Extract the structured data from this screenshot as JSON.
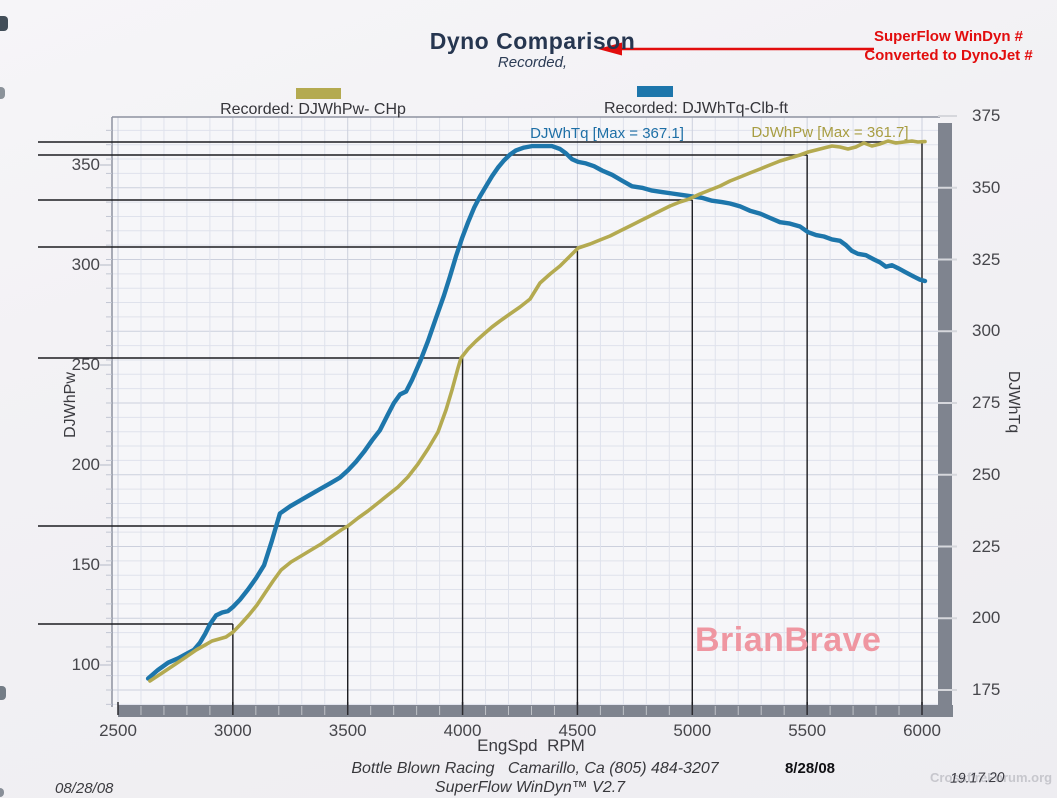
{
  "header": {
    "title": "Dyno Comparison",
    "subtitle": "Recorded,",
    "note_line1": "SuperFlow WinDyn #",
    "note_line2": "Converted to DynoJet #"
  },
  "legend": {
    "power_label": "Recorded: DJWhPw- CHp",
    "torque_label": "Recorded: DJWhTq-Clb-ft"
  },
  "annotations": {
    "torque_max_label": "DJWhTq [Max = 367.1]",
    "power_max_label": "DJWhPw [Max = 361.7]",
    "watermark": "BrianBrave",
    "corner_watermark": "CrossfireForum.org",
    "corner_time": "19.17.20"
  },
  "footer": {
    "shop_line": "Bottle Blown Racing   Camarillo, Ca (805) 484-3207",
    "software_line": "SuperFlow WinDyn™ V2.7",
    "date_bold": "8/28/08",
    "date_left": "08/28/08"
  },
  "colors": {
    "power_curve": "#b4aa50",
    "torque_curve": "#1d76ab",
    "crosshair": "#1c1c20",
    "red_accent": "#e20d0d",
    "grid_minor": "#dfe2ec",
    "grid_major": "#ccd0dd",
    "plot_bg": "#f6f6f9",
    "shadow": "#7f848f",
    "watermark_pink": "#ef96a1"
  },
  "chart_data": {
    "type": "line",
    "title": "Dyno Comparison",
    "x_axis": {
      "label": "EngSpd  RPM",
      "min": 2500,
      "max": 6078,
      "major_step": 500,
      "minor_step": 100,
      "ticks": [
        2500,
        3000,
        3500,
        4000,
        4500,
        5000,
        5500,
        6000
      ]
    },
    "y_left": {
      "label": "DJWhPw",
      "min": 75,
      "max": 375,
      "ticks": [
        100,
        150,
        200,
        250,
        300,
        350
      ]
    },
    "y_right": {
      "label": "DJWhTq",
      "min": 170,
      "max": 375,
      "grid_step": 5,
      "ticks": [
        175,
        200,
        225,
        250,
        275,
        300,
        325,
        350,
        375
      ]
    },
    "legend_position": "top",
    "grid": true,
    "series": [
      {
        "name": "DJWhTq-Clb-ft",
        "axis": "right",
        "color": "#1d76ab",
        "max": 367.1,
        "points": [
          [
            2631,
            179
          ],
          [
            2674,
            182
          ],
          [
            2718,
            184.5
          ],
          [
            2761,
            186
          ],
          [
            2796,
            187.5
          ],
          [
            2831,
            189
          ],
          [
            2857,
            191.5
          ],
          [
            2879,
            194.5
          ],
          [
            2901,
            198
          ],
          [
            2927,
            201
          ],
          [
            2953,
            202
          ],
          [
            2979,
            202.5
          ],
          [
            3001,
            204
          ],
          [
            3031,
            206.5
          ],
          [
            3066,
            210
          ],
          [
            3101,
            214
          ],
          [
            3136,
            218.5
          ],
          [
            3170,
            227
          ],
          [
            3205,
            236.5
          ],
          [
            3249,
            239
          ],
          [
            3292,
            241
          ],
          [
            3336,
            243
          ],
          [
            3379,
            245
          ],
          [
            3423,
            247
          ],
          [
            3466,
            249
          ],
          [
            3501,
            251.5
          ],
          [
            3536,
            254.5
          ],
          [
            3571,
            258
          ],
          [
            3606,
            262
          ],
          [
            3640,
            265.5
          ],
          [
            3675,
            271
          ],
          [
            3701,
            275
          ],
          [
            3728,
            278
          ],
          [
            3754,
            279
          ],
          [
            3780,
            283
          ],
          [
            3815,
            289.5
          ],
          [
            3849,
            296.5
          ],
          [
            3884,
            304.5
          ],
          [
            3919,
            312.5
          ],
          [
            3945,
            319
          ],
          [
            3971,
            326
          ],
          [
            3998,
            332.5
          ],
          [
            4024,
            338
          ],
          [
            4050,
            343
          ],
          [
            4076,
            347
          ],
          [
            4102,
            350.5
          ],
          [
            4128,
            354
          ],
          [
            4154,
            357
          ],
          [
            4180,
            359.5
          ],
          [
            4206,
            361.5
          ],
          [
            4232,
            363
          ],
          [
            4267,
            364
          ],
          [
            4302,
            364.5
          ],
          [
            4345,
            364.5
          ],
          [
            4389,
            364.5
          ],
          [
            4424,
            363.5
          ],
          [
            4450,
            362
          ],
          [
            4476,
            360
          ],
          [
            4503,
            359
          ],
          [
            4537,
            358.5
          ],
          [
            4572,
            357.5
          ],
          [
            4607,
            356
          ],
          [
            4651,
            354.5
          ],
          [
            4694,
            352.5
          ],
          [
            4738,
            350.5
          ],
          [
            4781,
            350
          ],
          [
            4825,
            349
          ],
          [
            4868,
            348.5
          ],
          [
            4912,
            348
          ],
          [
            4955,
            347.5
          ],
          [
            4999,
            347
          ],
          [
            5042,
            346.5
          ],
          [
            5086,
            345.5
          ],
          [
            5129,
            345
          ],
          [
            5164,
            344.5
          ],
          [
            5208,
            343.5
          ],
          [
            5251,
            342
          ],
          [
            5295,
            341
          ],
          [
            5338,
            339.5
          ],
          [
            5382,
            338
          ],
          [
            5425,
            337.5
          ],
          [
            5469,
            336.5
          ],
          [
            5504,
            334.5
          ],
          [
            5539,
            333.5
          ],
          [
            5573,
            333
          ],
          [
            5608,
            332
          ],
          [
            5643,
            331.5
          ],
          [
            5669,
            330
          ],
          [
            5695,
            328
          ],
          [
            5721,
            327
          ],
          [
            5756,
            326.5
          ],
          [
            5791,
            325
          ],
          [
            5817,
            324
          ],
          [
            5843,
            322.5
          ],
          [
            5869,
            323
          ],
          [
            5895,
            322
          ],
          [
            5930,
            320.5
          ],
          [
            5965,
            319
          ],
          [
            5991,
            318
          ],
          [
            6013,
            317.5
          ]
        ]
      },
      {
        "name": "DJWhPw- CHp",
        "axis": "left",
        "color": "#b4aa50",
        "max": 361.7,
        "points": [
          [
            2639,
            92
          ],
          [
            2692,
            96
          ],
          [
            2744,
            100
          ],
          [
            2796,
            104
          ],
          [
            2840,
            107.5
          ],
          [
            2879,
            110
          ],
          [
            2909,
            112
          ],
          [
            2940,
            113
          ],
          [
            2970,
            114
          ],
          [
            3001,
            116.5
          ],
          [
            3035,
            120.5
          ],
          [
            3070,
            125
          ],
          [
            3105,
            130
          ],
          [
            3140,
            136
          ],
          [
            3175,
            142
          ],
          [
            3210,
            147.5
          ],
          [
            3253,
            151.5
          ],
          [
            3297,
            154.5
          ],
          [
            3340,
            157.5
          ],
          [
            3384,
            160.5
          ],
          [
            3427,
            164
          ],
          [
            3471,
            167.5
          ],
          [
            3501,
            169.5
          ],
          [
            3545,
            173.5
          ],
          [
            3588,
            177
          ],
          [
            3632,
            181
          ],
          [
            3675,
            185
          ],
          [
            3719,
            189
          ],
          [
            3762,
            194
          ],
          [
            3806,
            200.5
          ],
          [
            3849,
            208
          ],
          [
            3893,
            216.5
          ],
          [
            3928,
            227.5
          ],
          [
            3954,
            237.5
          ],
          [
            3980,
            248.5
          ],
          [
            3993,
            253.5
          ],
          [
            4024,
            258
          ],
          [
            4059,
            262
          ],
          [
            4093,
            265.5
          ],
          [
            4128,
            269
          ],
          [
            4163,
            272
          ],
          [
            4206,
            275.5
          ],
          [
            4250,
            279
          ],
          [
            4294,
            283
          ],
          [
            4337,
            291
          ],
          [
            4381,
            295.5
          ],
          [
            4424,
            299.5
          ],
          [
            4468,
            304.5
          ],
          [
            4503,
            308.5
          ],
          [
            4555,
            310.5
          ],
          [
            4598,
            312.5
          ],
          [
            4642,
            314.5
          ],
          [
            4685,
            317
          ],
          [
            4729,
            319.5
          ],
          [
            4772,
            322
          ],
          [
            4816,
            324.5
          ],
          [
            4859,
            327
          ],
          [
            4903,
            329.5
          ],
          [
            4946,
            331.5
          ],
          [
            4986,
            333
          ],
          [
            5033,
            335.5
          ],
          [
            5077,
            337.5
          ],
          [
            5121,
            339.5
          ],
          [
            5164,
            342
          ],
          [
            5208,
            344
          ],
          [
            5251,
            346
          ],
          [
            5295,
            348
          ],
          [
            5338,
            350
          ],
          [
            5382,
            352
          ],
          [
            5425,
            353.5
          ],
          [
            5469,
            355
          ],
          [
            5504,
            356.5
          ],
          [
            5539,
            357.5
          ],
          [
            5573,
            358.5
          ],
          [
            5608,
            359.5
          ],
          [
            5643,
            359
          ],
          [
            5678,
            358
          ],
          [
            5712,
            359
          ],
          [
            5747,
            361
          ],
          [
            5782,
            359.5
          ],
          [
            5817,
            360.5
          ],
          [
            5852,
            362
          ],
          [
            5887,
            361
          ],
          [
            5921,
            361.5
          ],
          [
            5956,
            362
          ],
          [
            5982,
            361.5
          ],
          [
            6013,
            361.7
          ]
        ]
      }
    ],
    "crosshair_readouts": [
      {
        "rpm": 3000,
        "chp": 120.5
      },
      {
        "rpm": 3500,
        "chp": 169.5
      },
      {
        "rpm": 4000,
        "chp": 253.5
      },
      {
        "rpm": 4500,
        "chp": 309
      },
      {
        "rpm": 5000,
        "chp": 332.5
      },
      {
        "rpm": 5500,
        "chp": 355
      },
      {
        "rpm": 6000,
        "chp": 361.5
      }
    ]
  }
}
